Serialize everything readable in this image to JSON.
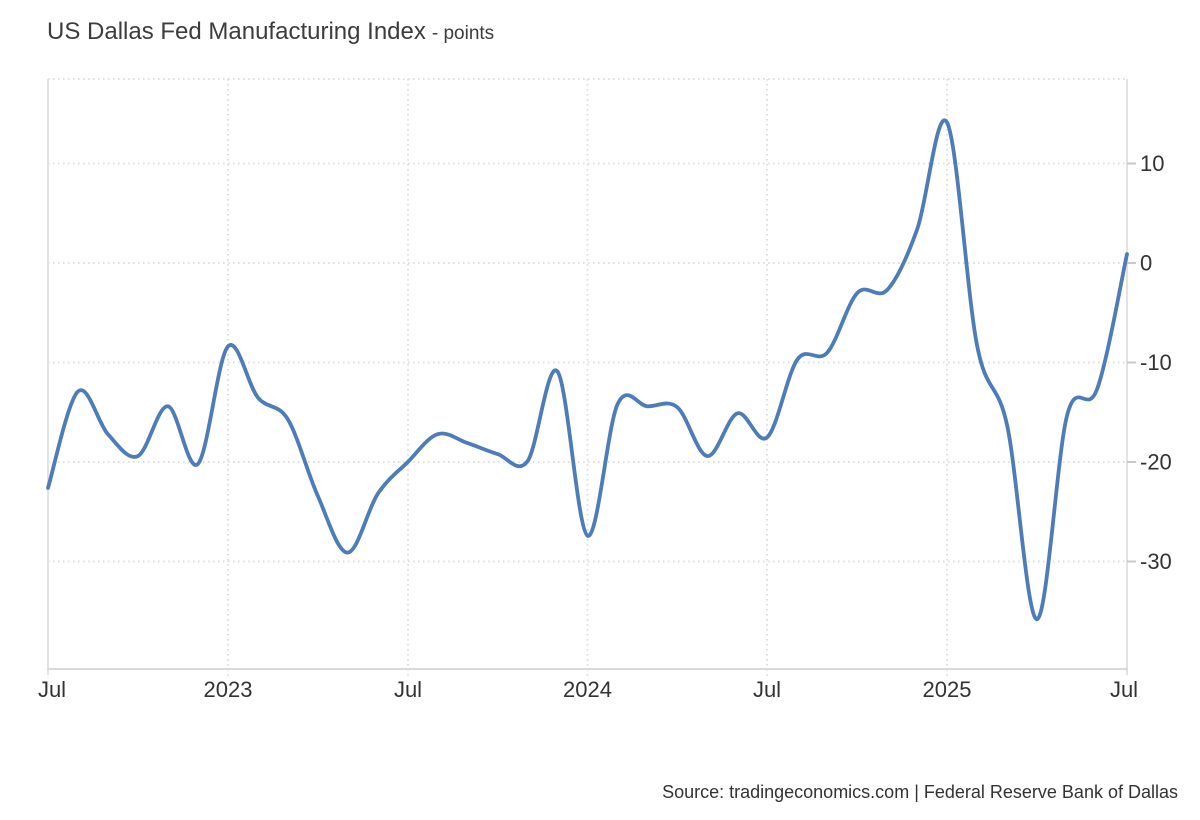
{
  "header": {
    "title": "US Dallas Fed Manufacturing Index",
    "subtitle": "- points"
  },
  "footer": {
    "source": "Source: tradingeconomics.com | Federal Reserve Bank of Dallas"
  },
  "chart_data": {
    "type": "line",
    "title": "US Dallas Fed Manufacturing Index",
    "unit": "points",
    "line_color": "#4e7cb9",
    "grid": "dotted",
    "legend": "none",
    "x": [
      "Jul 2022",
      "Aug 2022",
      "Sep 2022",
      "Oct 2022",
      "Nov 2022",
      "Dec 2022",
      "Jan 2023",
      "Feb 2023",
      "Mar 2023",
      "Apr 2023",
      "May 2023",
      "Jun 2023",
      "Jul 2023",
      "Aug 2023",
      "Sep 2023",
      "Oct 2023",
      "Nov 2023",
      "Dec 2023",
      "Jan 2024",
      "Feb 2024",
      "Mar 2024",
      "Apr 2024",
      "May 2024",
      "Jun 2024",
      "Jul 2024",
      "Aug 2024",
      "Sep 2024",
      "Oct 2024",
      "Nov 2024",
      "Dec 2024",
      "Jan 2025",
      "Feb 2025",
      "Mar 2025",
      "Apr 2025",
      "May 2025",
      "Jun 2025",
      "Jul 2025"
    ],
    "values": [
      -22.6,
      -12.9,
      -17.2,
      -19.4,
      -14.4,
      -20.2,
      -8.4,
      -13.5,
      -15.7,
      -23.4,
      -29.1,
      -23.2,
      -20.0,
      -17.2,
      -18.1,
      -19.2,
      -19.9,
      -10.9,
      -27.4,
      -14.2,
      -14.4,
      -14.5,
      -19.4,
      -15.1,
      -17.5,
      -9.7,
      -9.0,
      -3.0,
      -2.7,
      3.4,
      14.1,
      -8.3,
      -16.3,
      -35.8,
      -15.3,
      -12.7,
      0.9
    ],
    "x_tick_labels": [
      "Jul",
      "2023",
      "Jul",
      "2024",
      "Jul",
      "2025",
      "Jul"
    ],
    "x_tick_positions": [
      0,
      6,
      12,
      18,
      24,
      30,
      36
    ],
    "y_ticks": [
      10,
      0,
      -10,
      -20,
      -30
    ],
    "ylim": [
      -40.8,
      18.5
    ],
    "xlabel": "",
    "ylabel": "points"
  }
}
